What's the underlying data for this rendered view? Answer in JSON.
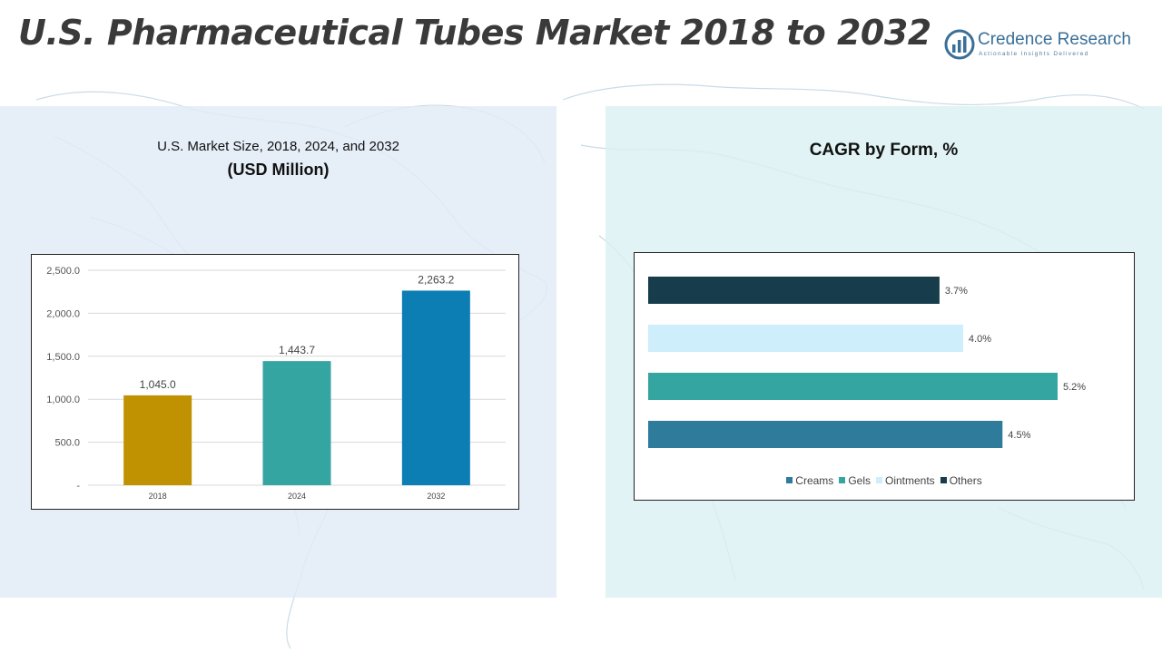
{
  "header": {
    "title": "U.S. Pharmaceutical Tubes Market 2018 to 2032"
  },
  "logo": {
    "name": "Credence Research",
    "tagline": "Actionable Insights Delivered",
    "color": "#3a6f98"
  },
  "left_panel": {
    "title_line1": "U.S. Market Size, 2018, 2024, and 2032",
    "title_line2": "(USD Million)"
  },
  "right_panel": {
    "title": "CAGR by Form, %"
  },
  "chart_data": [
    {
      "type": "bar",
      "title": "U.S. Market Size, 2018, 2024, and 2032",
      "ylabel": "(USD Million)",
      "categories": [
        "2018",
        "2024",
        "2032"
      ],
      "values": [
        1045.0,
        1443.7,
        2263.2
      ],
      "data_labels": [
        "1,045.0",
        "1,443.7",
        "2,263.2"
      ],
      "colors": [
        "#c09100",
        "#35a5a2",
        "#0c7eb3"
      ],
      "ylim": [
        0,
        2500
      ],
      "yticks": [
        0,
        500,
        1000,
        1500,
        2000,
        2500
      ],
      "ytick_labels": [
        "-",
        "500.0",
        "1,000.0",
        "1,500.0",
        "2,000.0",
        "2,500.0"
      ],
      "grid": true
    },
    {
      "type": "bar",
      "orientation": "horizontal",
      "title": "CAGR by Form, %",
      "series": [
        {
          "name": "Creams",
          "value": 4.5,
          "label": "4.5%",
          "color": "#2e7b9c"
        },
        {
          "name": "Gels",
          "value": 5.2,
          "label": "5.2%",
          "color": "#35a5a2"
        },
        {
          "name": "Ointments",
          "value": 4.0,
          "label": "4.0%",
          "color": "#cdeefa"
        },
        {
          "name": "Others",
          "value": 3.7,
          "label": "3.7%",
          "color": "#173c4c"
        }
      ],
      "xlim": [
        0,
        5.2
      ],
      "grid": false,
      "legend_position": "bottom"
    }
  ]
}
